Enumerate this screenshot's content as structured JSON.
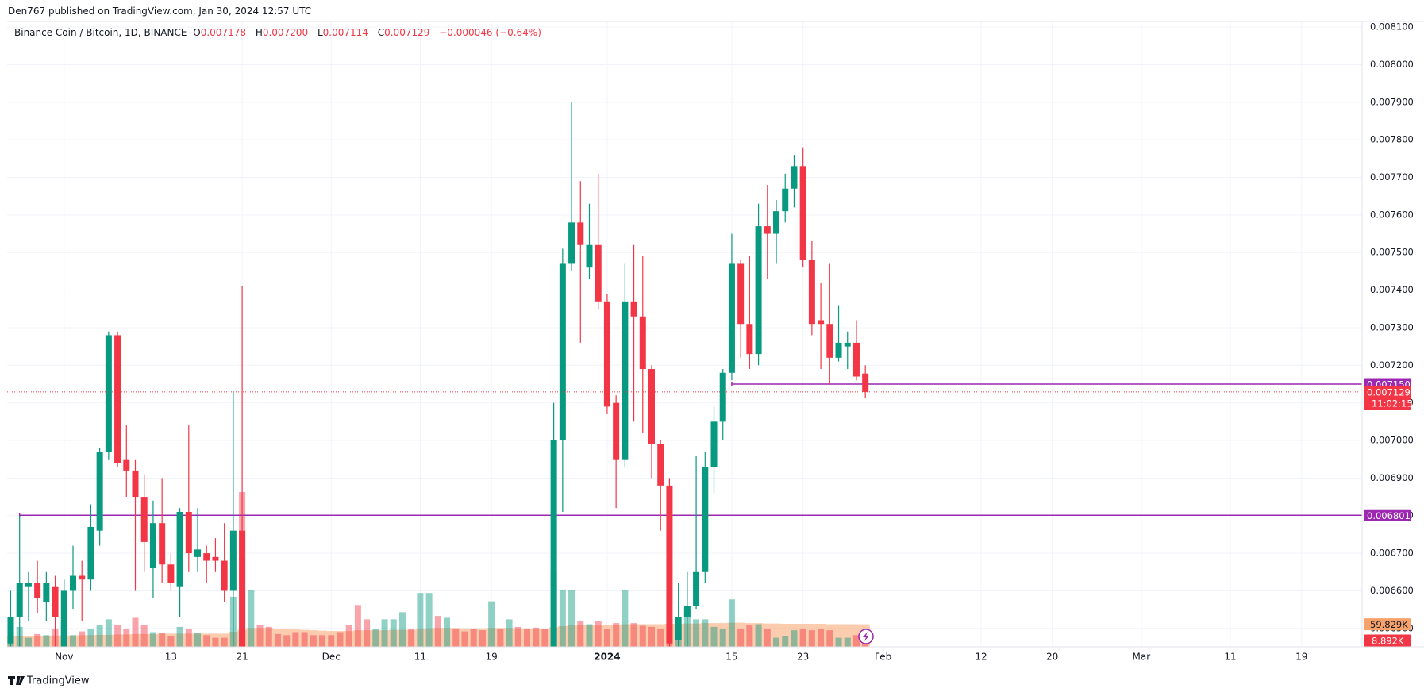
{
  "publisher": "Den767 published on TradingView.com, Jan 30, 2024 12:57 UTC",
  "brand": "TradingView",
  "chart_data": {
    "type": "candlestick",
    "title": "Binance Coin / Bitcoin, 1D, BINANCE",
    "ohlc_labels": [
      "O",
      "H",
      "L",
      "C"
    ],
    "ohlc_value_labels": [
      "0.007178",
      "0.007200",
      "0.007114",
      "0.007129"
    ],
    "change": "−0.000046 (−0.64%)",
    "up_color": "#089981",
    "down_color": "#f23645",
    "open": [
      0.00646,
      0.00653,
      0.00661,
      0.00662,
      0.00657,
      0.00661,
      0.00645,
      0.0066,
      0.00664,
      0.00663,
      0.00676,
      0.00697,
      0.00728,
      0.00695,
      0.00692,
      0.00685,
      0.00666,
      0.00678,
      0.00667,
      0.00661,
      0.00681,
      0.00669,
      0.0067,
      0.00669,
      0.00668,
      0.0066,
      0.00676,
      null,
      null,
      null,
      null,
      null,
      null,
      null,
      null,
      null,
      null,
      null,
      null,
      null,
      null,
      null,
      null,
      null,
      null,
      null,
      null,
      null,
      null,
      null,
      null,
      null,
      null,
      null,
      null,
      null,
      null,
      null,
      null,
      null,
      null,
      0.0064,
      0.007,
      0.00747,
      0.00758,
      0.00746,
      0.00752,
      0.00737,
      0.0071,
      0.00695,
      0.00737,
      0.00733,
      0.00719,
      0.00699,
      0.00688,
      0.00647,
      0.00653,
      0.00656,
      0.00665,
      0.00693,
      0.00705,
      0.00718,
      0.00747,
      0.00731,
      0.00723,
      0.00757,
      0.00755,
      0.00761,
      0.00767,
      0.00773,
      0.00748,
      0.00732,
      0.00731,
      0.00722,
      0.00725,
      0.00726,
      0.007178
    ],
    "high": [
      0.0066,
      0.0068,
      0.00665,
      0.00668,
      0.00665,
      0.00664,
      0.00663,
      0.00672,
      0.00668,
      0.00683,
      0.00698,
      0.00729,
      0.00729,
      0.00704,
      0.00695,
      0.00691,
      0.00684,
      0.0069,
      0.0067,
      0.00682,
      0.00704,
      0.00682,
      0.00672,
      0.00674,
      0.00678,
      0.00713,
      0.00741,
      null,
      null,
      null,
      null,
      null,
      null,
      null,
      null,
      null,
      null,
      null,
      null,
      null,
      null,
      null,
      null,
      null,
      null,
      null,
      null,
      null,
      null,
      null,
      null,
      null,
      null,
      null,
      null,
      null,
      null,
      null,
      null,
      null,
      null,
      0.0071,
      0.00751,
      0.0079,
      0.00769,
      0.00763,
      0.00771,
      0.00739,
      0.00712,
      0.00747,
      0.00752,
      0.00749,
      0.0072,
      0.007,
      0.0069,
      0.00662,
      0.00665,
      0.00696,
      0.00697,
      0.00709,
      0.00719,
      0.00755,
      0.00748,
      0.00749,
      0.00763,
      0.00768,
      0.00764,
      0.00771,
      0.00776,
      0.00778,
      0.00753,
      0.00742,
      0.00747,
      0.00736,
      0.00729,
      0.00732,
      0.0072
    ],
    "low": [
      0.00645,
      0.00645,
      0.00652,
      0.00654,
      0.00652,
      0.00645,
      0.00643,
      0.00655,
      0.00652,
      0.0066,
      0.00672,
      0.00695,
      0.00693,
      0.00685,
      0.0066,
      0.00665,
      0.00658,
      0.00662,
      0.0066,
      0.00653,
      0.00665,
      0.00665,
      0.00662,
      0.00665,
      0.00657,
      0.00645,
      0.0063,
      null,
      null,
      null,
      null,
      null,
      null,
      null,
      null,
      null,
      null,
      null,
      null,
      null,
      null,
      null,
      null,
      null,
      null,
      null,
      null,
      null,
      null,
      null,
      null,
      null,
      null,
      null,
      null,
      null,
      null,
      null,
      null,
      null,
      null,
      0.00635,
      0.00681,
      0.00745,
      0.00726,
      0.00743,
      0.00735,
      0.00707,
      0.00682,
      0.00693,
      0.00705,
      0.00702,
      0.0069,
      0.00676,
      0.0064,
      0.0064,
      0.00645,
      0.00655,
      0.00662,
      0.00686,
      0.007,
      0.00716,
      0.00722,
      0.00719,
      0.0072,
      0.00743,
      0.00747,
      0.00758,
      0.00762,
      0.00746,
      0.00728,
      0.00719,
      0.00715,
      0.00721,
      0.00719,
      0.00716,
      0.007114
    ],
    "close": [
      0.00653,
      0.00662,
      0.00662,
      0.00658,
      0.00662,
      0.00653,
      0.0066,
      0.00664,
      0.00663,
      0.00677,
      0.00697,
      0.00728,
      0.00694,
      0.00692,
      0.00685,
      0.00673,
      0.00678,
      0.00667,
      0.00662,
      0.00681,
      0.0067,
      0.00671,
      0.00668,
      0.00668,
      0.0066,
      0.00676,
      0.00638,
      null,
      null,
      null,
      null,
      null,
      null,
      null,
      null,
      null,
      null,
      null,
      null,
      null,
      null,
      null,
      null,
      null,
      null,
      null,
      null,
      null,
      null,
      null,
      null,
      null,
      null,
      null,
      null,
      null,
      null,
      null,
      null,
      null,
      null,
      0.007,
      0.00747,
      0.00758,
      0.00752,
      0.00752,
      0.00737,
      0.00709,
      0.00695,
      0.00737,
      0.00733,
      0.00719,
      0.00699,
      0.00688,
      0.00646,
      0.00653,
      0.00656,
      0.00665,
      0.00693,
      0.00705,
      0.00718,
      0.00747,
      0.00731,
      0.00723,
      0.00757,
      0.00755,
      0.00761,
      0.00767,
      0.00773,
      0.00748,
      0.00731,
      0.00731,
      0.00722,
      0.00726,
      0.00726,
      0.00717,
      0.007129
    ],
    "countdown": "11:02:15",
    "volume": [
      77000,
      53000,
      24000,
      34000,
      31000,
      48000,
      63000,
      31000,
      41000,
      48000,
      58000,
      73000,
      58000,
      48000,
      77000,
      58000,
      39000,
      36000,
      29000,
      53000,
      48000,
      36000,
      31000,
      24000,
      24000,
      133000,
      411000,
      150000,
      58000,
      53000,
      34000,
      31000,
      39000,
      39000,
      31000,
      31000,
      31000,
      39000,
      58000,
      111000,
      73000,
      48000,
      73000,
      73000,
      92000,
      48000,
      143000,
      143000,
      82000,
      77000,
      48000,
      41000,
      48000,
      44000,
      121000,
      48000,
      73000,
      53000,
      48000,
      51000,
      48000,
      200000,
      152000,
      150000,
      68000,
      60000,
      68000,
      48000,
      63000,
      150000,
      63000,
      56000,
      53000,
      48000,
      73000,
      77000,
      97000,
      73000,
      73000,
      53000,
      48000,
      126000,
      48000,
      58000,
      60000,
      48000,
      24000,
      29000,
      44000,
      48000,
      44000,
      48000,
      44000,
      24000,
      24000,
      31000,
      8892
    ],
    "volume_colors": [
      "#089981",
      "#089981",
      "#089981",
      "#f23645",
      "#089981",
      "#f23645",
      "#089981",
      "#089981",
      "#f23645",
      "#089981",
      "#089981",
      "#089981",
      "#f23645",
      "#f23645",
      "#f23645",
      "#f23645",
      "#089981",
      "#f23645",
      "#f23645",
      "#089981",
      "#f23645",
      "#089981",
      "#f23645",
      "#f23645",
      "#f23645",
      "#089981",
      "#f23645",
      "#089981",
      "#f23645",
      "#f23645",
      "#f23645",
      "#f23645",
      "#f23645",
      "#f23645",
      "#f23645",
      "#f23645",
      "#f23645",
      "#f23645",
      "#f23645",
      "#f23645",
      "#f23645",
      "#089981",
      "#089981",
      "#089981",
      "#089981",
      "#f23645",
      "#089981",
      "#089981",
      "#f23645",
      "#089981",
      "#f23645",
      "#f23645",
      "#f23645",
      "#f23645",
      "#089981",
      "#f23645",
      "#089981",
      "#f23645",
      "#f23645",
      "#f23645",
      "#f23645",
      "#089981",
      "#089981",
      "#089981",
      "#f23645",
      "#089981",
      "#f23645",
      "#f23645",
      "#f23645",
      "#089981",
      "#f23645",
      "#f23645",
      "#f23645",
      "#f23645",
      "#f23645",
      "#089981",
      "#089981",
      "#089981",
      "#089981",
      "#089981",
      "#089981",
      "#089981",
      "#f23645",
      "#f23645",
      "#089981",
      "#f23645",
      "#089981",
      "#089981",
      "#089981",
      "#f23645",
      "#f23645",
      "#f23645",
      "#f23645",
      "#089981",
      "#089981",
      "#f23645",
      "#f23645"
    ],
    "volume_last_label": "8.892K",
    "volume_ma": [
      28000,
      28000,
      29000,
      29000,
      29000,
      30000,
      30000,
      30000,
      31000,
      31000,
      32000,
      32000,
      33000,
      33000,
      34000,
      34000,
      34000,
      35000,
      35000,
      35000,
      35000,
      35000,
      35000,
      35000,
      35000,
      40000,
      45000,
      50000,
      50000,
      50000,
      48000,
      47000,
      46000,
      45000,
      44000,
      43000,
      42000,
      42000,
      42000,
      44000,
      44000,
      44000,
      44000,
      45000,
      45000,
      45000,
      47000,
      49000,
      50000,
      50000,
      50000,
      49000,
      49000,
      49000,
      50000,
      50000,
      50000,
      49000,
      49000,
      48000,
      48000,
      52000,
      55000,
      57000,
      58000,
      58000,
      58000,
      58000,
      58000,
      60000,
      60000,
      60000,
      60000,
      60000,
      61000,
      61000,
      62000,
      62000,
      63000,
      63000,
      63000,
      64000,
      64000,
      63000,
      63000,
      62000,
      62000,
      61000,
      61000,
      61000,
      61000,
      61000,
      60000,
      60000,
      60000,
      60000,
      59829
    ],
    "volume_ma_color": "#f7a26a",
    "volume_ma_last_label": "59.829K",
    "levels": [
      {
        "value": 0.00715,
        "label": "0.007150"
      },
      0.006801
    ],
    "level_starts": [
      81,
      1
    ],
    "level_color": "#9c27b0",
    "xlim": [
      -0.4,
      151.8
    ],
    "xticks": [
      {
        "value": 6,
        "label": "Nov"
      },
      {
        "value": 18,
        "label": "13"
      },
      {
        "value": 26,
        "label": "21"
      },
      {
        "value": 36,
        "label": "Dec"
      },
      {
        "value": 46,
        "label": "11"
      },
      {
        "value": 54,
        "label": "19"
      },
      {
        "value": 67,
        "label": "2024"
      },
      {
        "value": 81,
        "label": "15"
      },
      {
        "value": 89,
        "label": "23"
      },
      {
        "value": 98,
        "label": "Feb"
      },
      {
        "value": 109,
        "label": "12"
      },
      {
        "value": 117,
        "label": "20"
      },
      {
        "value": 127,
        "label": "Mar"
      },
      {
        "value": 137,
        "label": "11"
      },
      {
        "value": 145,
        "label": "19"
      }
    ],
    "ylim": [
      0.006451,
      0.008115
    ],
    "yticks": [
      {
        "value": 0.0065,
        "label": "0.006500"
      },
      {
        "value": 0.0066,
        "label": "0.006600"
      },
      {
        "value": 0.0067,
        "label": "0.006700"
      },
      {
        "value": 0.0068,
        "label": "0.006800"
      },
      {
        "value": 0.0069,
        "label": "0.006900"
      },
      {
        "value": 0.007,
        "label": "0.007000"
      },
      {
        "value": 0.0071,
        "label": "0.007100"
      },
      {
        "value": 0.0072,
        "label": "0.007200"
      },
      {
        "value": 0.0073,
        "label": "0.007300"
      },
      {
        "value": 0.0074,
        "label": "0.007400"
      },
      {
        "value": 0.0075,
        "label": "0.007500"
      },
      {
        "value": 0.0076,
        "label": "0.007600"
      },
      {
        "value": 0.0077,
        "label": "0.007700"
      },
      {
        "value": 0.0078,
        "label": "0.007800"
      },
      {
        "value": 0.0079,
        "label": "0.007900"
      },
      {
        "value": 0.008,
        "label": "0.008000"
      },
      {
        "value": 0.0081,
        "label": "0.008100"
      }
    ],
    "grid": true
  }
}
